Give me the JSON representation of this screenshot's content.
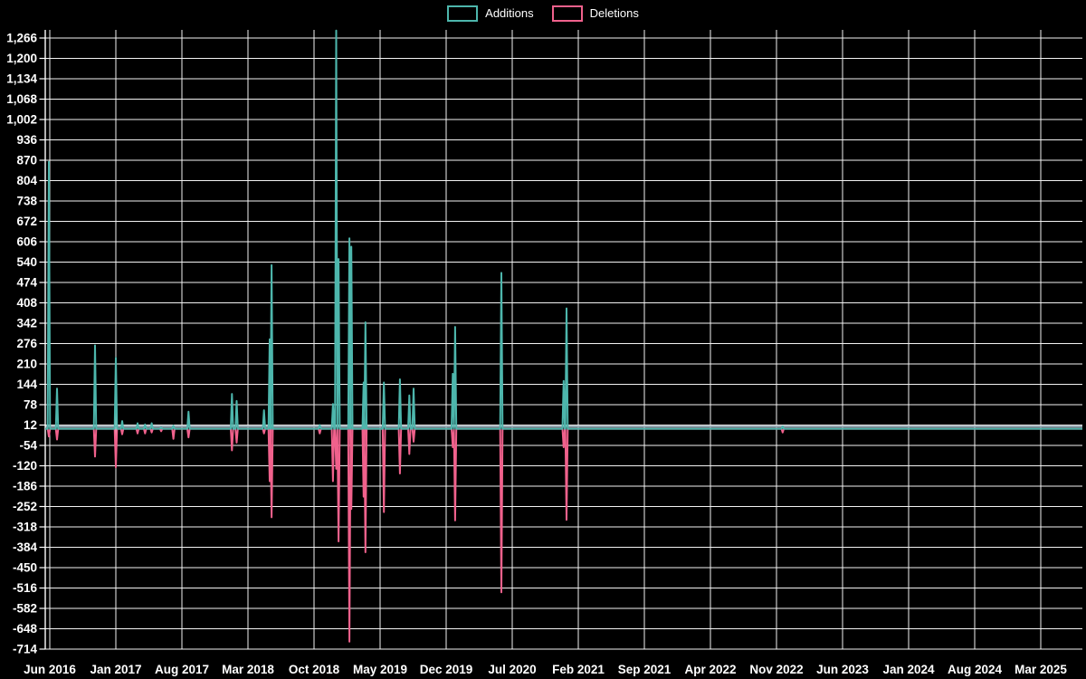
{
  "colors": {
    "background": "#000000",
    "grid": "#f2f2f2",
    "axis": "#ffffff",
    "zero_line": "#9db1bc",
    "additions": "#4db6ac",
    "deletions": "#f0618c",
    "label_text": "#ffffff"
  },
  "chart_data": {
    "type": "line",
    "title": "",
    "legend_position": "top-center",
    "grid": true,
    "x_axis": {
      "unit": "months since Jun 2016",
      "tick_months": [
        0,
        7,
        14,
        21,
        28,
        35,
        42,
        49,
        56,
        63,
        70,
        77,
        84,
        91,
        98,
        105
      ],
      "tick_labels": [
        "Jun 2016",
        "Jan 2017",
        "Aug 2017",
        "Mar 2018",
        "Oct 2018",
        "May 2019",
        "Dec 2019",
        "Jul 2020",
        "Feb 2021",
        "Sep 2021",
        "Apr 2022",
        "Nov 2022",
        "Jun 2023",
        "Jan 2024",
        "Aug 2024",
        "Mar 2025"
      ],
      "range_months": [
        -0.5,
        109.4
      ]
    },
    "y_axis": {
      "tick_values": [
        1266,
        1200,
        1134,
        1068,
        1002,
        936,
        870,
        804,
        738,
        672,
        606,
        540,
        474,
        408,
        342,
        276,
        210,
        144,
        78,
        12,
        -54,
        -120,
        -186,
        -252,
        -318,
        -384,
        -450,
        -516,
        -582,
        -648,
        -714
      ],
      "tick_labels": [
        "1,266",
        "1,200",
        "1,134",
        "1,068",
        "1,002",
        "936",
        "870",
        "804",
        "738",
        "672",
        "606",
        "540",
        "474",
        "408",
        "342",
        "276",
        "210",
        "144",
        "78",
        "12",
        "-54",
        "-120",
        "-186",
        "-252",
        "-318",
        "-384",
        "-450",
        "-516",
        "-582",
        "-648",
        "-714"
      ],
      "min": -714,
      "max": 1292
    },
    "series": [
      {
        "name": "Additions",
        "color": "#4db6ac",
        "baseline_value": 0,
        "value_key": "additions"
      },
      {
        "name": "Deletions",
        "color": "#f0618c",
        "baseline_value": 0,
        "value_key": "deletions"
      }
    ],
    "encoding_note": "Both series are flat at 0 except at the event spikes below; t = months after Jun 2016.",
    "events": [
      {
        "t": -0.1,
        "additions": 865,
        "deletions": -25,
        "approx_date": "Jun 2016"
      },
      {
        "t": 0.77,
        "additions": 130,
        "deletions": -35,
        "approx_date": "Jun 2016"
      },
      {
        "t": 4.79,
        "additions": 270,
        "deletions": -90,
        "approx_date": "Nov 2016"
      },
      {
        "t": 7.0,
        "additions": 230,
        "deletions": -125,
        "approx_date": "Jan 2017"
      },
      {
        "t": 7.67,
        "additions": 25,
        "deletions": -18,
        "approx_date": "Jan 2017"
      },
      {
        "t": 9.3,
        "additions": 18,
        "deletions": -15,
        "approx_date": "Mar 2017"
      },
      {
        "t": 10.1,
        "additions": 14,
        "deletions": -15,
        "approx_date": "Apr 2017"
      },
      {
        "t": 10.8,
        "additions": 18,
        "deletions": -12,
        "approx_date": "Apr 2017"
      },
      {
        "t": 11.8,
        "additions": 4,
        "deletions": -8,
        "approx_date": "May 2017"
      },
      {
        "t": 13.1,
        "additions": 10,
        "deletions": -33,
        "approx_date": "Jul 2017"
      },
      {
        "t": 14.7,
        "additions": 55,
        "deletions": -28,
        "approx_date": "Aug 2017"
      },
      {
        "t": 19.3,
        "additions": 113,
        "deletions": -70,
        "approx_date": "Jan 2018"
      },
      {
        "t": 19.8,
        "additions": 90,
        "deletions": -45,
        "approx_date": "Jan 2018"
      },
      {
        "t": 22.7,
        "additions": 60,
        "deletions": -15,
        "approx_date": "Apr 2018"
      },
      {
        "t": 23.3,
        "additions": 290,
        "deletions": -170,
        "approx_date": "May 2018"
      },
      {
        "t": 23.5,
        "additions": 530,
        "deletions": -287,
        "approx_date": "May 2018"
      },
      {
        "t": 28.6,
        "additions": 12,
        "deletions": -15,
        "approx_date": "Oct 2018"
      },
      {
        "t": 30.0,
        "additions": 80,
        "deletions": -170,
        "approx_date": "Dec 2018"
      },
      {
        "t": 30.35,
        "additions": 1290,
        "deletions": -130,
        "approx_date": "Dec 2018",
        "clipped_at_top": true
      },
      {
        "t": 30.6,
        "additions": 550,
        "deletions": -365,
        "approx_date": "Dec 2018"
      },
      {
        "t": 31.75,
        "additions": 617,
        "deletions": -690,
        "approx_date": "Jan 2019"
      },
      {
        "t": 31.95,
        "additions": 590,
        "deletions": -260,
        "approx_date": "Feb 2019"
      },
      {
        "t": 33.25,
        "additions": 150,
        "deletions": -220,
        "approx_date": "Mar 2019"
      },
      {
        "t": 33.45,
        "additions": 345,
        "deletions": -400,
        "approx_date": "Mar 2019"
      },
      {
        "t": 35.4,
        "additions": 150,
        "deletions": -270,
        "approx_date": "May 2019"
      },
      {
        "t": 37.1,
        "additions": 160,
        "deletions": -145,
        "approx_date": "Jul 2019"
      },
      {
        "t": 38.1,
        "additions": 108,
        "deletions": -82,
        "approx_date": "Aug 2019"
      },
      {
        "t": 38.55,
        "additions": 130,
        "deletions": -42,
        "approx_date": "Aug 2019"
      },
      {
        "t": 42.7,
        "additions": 178,
        "deletions": -60,
        "approx_date": "Dec 2019"
      },
      {
        "t": 42.95,
        "additions": 330,
        "deletions": -297,
        "approx_date": "Jan 2020"
      },
      {
        "t": 47.85,
        "additions": 505,
        "deletions": -530,
        "approx_date": "Jun 2020"
      },
      {
        "t": 54.45,
        "additions": 155,
        "deletions": -60,
        "approx_date": "Dec 2020"
      },
      {
        "t": 54.75,
        "additions": 390,
        "deletions": -295,
        "approx_date": "Jan 2021"
      },
      {
        "t": 77.65,
        "additions": 8,
        "deletions": -12,
        "approx_date": "Nov 2022"
      }
    ]
  }
}
